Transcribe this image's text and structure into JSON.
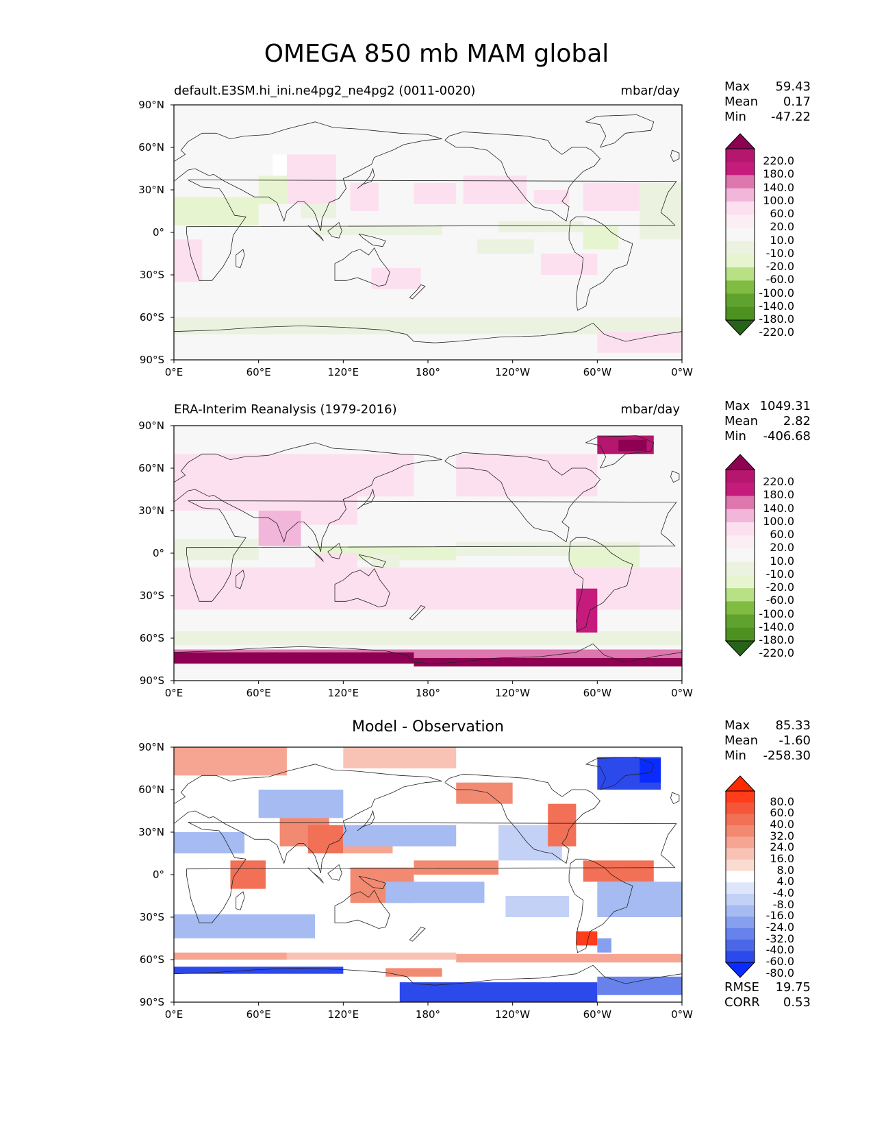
{
  "figure_title": "OMEGA 850 mb MAM global",
  "x_ticks": [
    "0°E",
    "60°E",
    "120°E",
    "180°",
    "120°W",
    "60°W",
    "0°W"
  ],
  "y_ticks": [
    "90°N",
    "60°N",
    "30°N",
    "0°",
    "30°S",
    "60°S",
    "90°S"
  ],
  "panels": [
    {
      "title_left": "default.E3SM.hi_ini.ne4pg2_ne4pg2 (0011-0020)",
      "title_right": "mbar/day",
      "title_center": "",
      "stats": [
        {
          "label": "Max",
          "value": "59.43"
        },
        {
          "label": "Mean",
          "value": "0.17"
        },
        {
          "label": "Min",
          "value": "-47.22"
        }
      ],
      "colorbar": {
        "labels": [
          "220.0",
          "180.0",
          "140.0",
          "100.0",
          "60.0",
          "20.0",
          "10.0",
          "-10.0",
          "-20.0",
          "-60.0",
          "-100.0",
          "-140.0",
          "-180.0",
          "-220.0"
        ],
        "colors": [
          "#8e0152",
          "#b5166e",
          "#c51b7d",
          "#de77ae",
          "#f1b6da",
          "#fde0ef",
          "#fbeef5",
          "#f7f7f7",
          "#ebf3e0",
          "#e6f5d0",
          "#b8e186",
          "#7fbc41",
          "#5fa32e",
          "#4d9221",
          "#276419"
        ]
      },
      "footer": []
    },
    {
      "title_left": "ERA-Interim Reanalysis (1979-2016)",
      "title_right": "mbar/day",
      "title_center": "",
      "stats": [
        {
          "label": "Max",
          "value": "1049.31"
        },
        {
          "label": "Mean",
          "value": "2.82"
        },
        {
          "label": "Min",
          "value": "-406.68"
        }
      ],
      "colorbar": {
        "labels": [
          "220.0",
          "180.0",
          "140.0",
          "100.0",
          "60.0",
          "20.0",
          "10.0",
          "-10.0",
          "-20.0",
          "-60.0",
          "-100.0",
          "-140.0",
          "-180.0",
          "-220.0"
        ],
        "colors": [
          "#8e0152",
          "#b5166e",
          "#c51b7d",
          "#de77ae",
          "#f1b6da",
          "#fde0ef",
          "#fbeef5",
          "#f7f7f7",
          "#ebf3e0",
          "#e6f5d0",
          "#b8e186",
          "#7fbc41",
          "#5fa32e",
          "#4d9221",
          "#276419"
        ]
      },
      "footer": []
    },
    {
      "title_left": "",
      "title_right": "",
      "title_center": "Model - Observation",
      "stats": [
        {
          "label": "Max",
          "value": "85.33"
        },
        {
          "label": "Mean",
          "value": "-1.60"
        },
        {
          "label": "Min",
          "value": "-258.30"
        }
      ],
      "colorbar": {
        "labels": [
          "80.0",
          "60.0",
          "40.0",
          "32.0",
          "24.0",
          "16.0",
          "8.0",
          "4.0",
          "-4.0",
          "-8.0",
          "-16.0",
          "-24.0",
          "-32.0",
          "-40.0",
          "-60.0",
          "-80.0"
        ],
        "colors": [
          "#ff2a00",
          "#ff3d1a",
          "#f5563a",
          "#f27056",
          "#f28a72",
          "#f5a592",
          "#f8c2b4",
          "#fbdcd3",
          "#ffffff",
          "#dde6fb",
          "#c3d1f7",
          "#a5bbf2",
          "#869fee",
          "#6783eb",
          "#4b67e8",
          "#2c49eb",
          "#0a2bff"
        ]
      },
      "footer": [
        {
          "label": "RMSE",
          "value": "19.75"
        },
        {
          "label": "CORR",
          "value": "0.53"
        }
      ]
    }
  ]
}
